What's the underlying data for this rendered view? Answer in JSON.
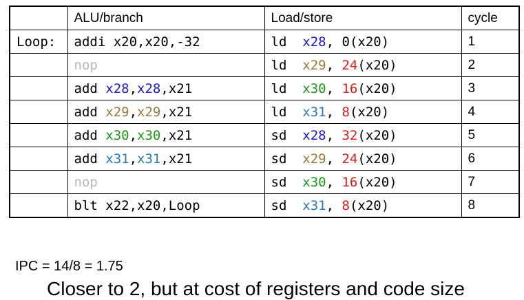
{
  "table": {
    "headers": {
      "label": "",
      "alu": "ALU/branch",
      "ls": "Load/store",
      "cycle": "cycle"
    },
    "rows": [
      {
        "label": "Loop:",
        "alu": [
          {
            "t": "addi x20,x20,-32",
            "c": ""
          }
        ],
        "ls": [
          {
            "t": "ld  ",
            "c": ""
          },
          {
            "t": "x28",
            "c": "blue"
          },
          {
            "t": ", ",
            "c": ""
          },
          {
            "t": "0",
            "c": ""
          },
          {
            "t": "(x20)",
            "c": ""
          }
        ],
        "cycle": "1"
      },
      {
        "label": "",
        "alu": [
          {
            "t": "nop",
            "c": "nop"
          }
        ],
        "ls": [
          {
            "t": "ld  ",
            "c": ""
          },
          {
            "t": "x29",
            "c": "gold"
          },
          {
            "t": ", ",
            "c": ""
          },
          {
            "t": "24",
            "c": "red"
          },
          {
            "t": "(x20)",
            "c": ""
          }
        ],
        "cycle": "2"
      },
      {
        "label": "",
        "alu": [
          {
            "t": "add ",
            "c": ""
          },
          {
            "t": "x28",
            "c": "blue"
          },
          {
            "t": ",",
            "c": ""
          },
          {
            "t": "x28",
            "c": "blue"
          },
          {
            "t": ",x21",
            "c": ""
          }
        ],
        "ls": [
          {
            "t": "ld  ",
            "c": ""
          },
          {
            "t": "x30",
            "c": "green"
          },
          {
            "t": ", ",
            "c": ""
          },
          {
            "t": "16",
            "c": "red"
          },
          {
            "t": "(x20)",
            "c": ""
          }
        ],
        "cycle": "3"
      },
      {
        "label": "",
        "alu": [
          {
            "t": "add ",
            "c": ""
          },
          {
            "t": "x29",
            "c": "gold"
          },
          {
            "t": ",",
            "c": ""
          },
          {
            "t": "x29",
            "c": "gold"
          },
          {
            "t": ",x21",
            "c": ""
          }
        ],
        "ls": [
          {
            "t": "ld  ",
            "c": ""
          },
          {
            "t": "x31",
            "c": "cyan"
          },
          {
            "t": ", ",
            "c": ""
          },
          {
            "t": "8",
            "c": "red"
          },
          {
            "t": "(x20)",
            "c": ""
          }
        ],
        "cycle": "4"
      },
      {
        "label": "",
        "alu": [
          {
            "t": "add ",
            "c": ""
          },
          {
            "t": "x30",
            "c": "green"
          },
          {
            "t": ",",
            "c": ""
          },
          {
            "t": "x30",
            "c": "green"
          },
          {
            "t": ",x21",
            "c": ""
          }
        ],
        "ls": [
          {
            "t": "sd  ",
            "c": ""
          },
          {
            "t": "x28",
            "c": "blue"
          },
          {
            "t": ", ",
            "c": ""
          },
          {
            "t": "32",
            "c": "red"
          },
          {
            "t": "(x20)",
            "c": ""
          }
        ],
        "cycle": "5"
      },
      {
        "label": "",
        "alu": [
          {
            "t": "add ",
            "c": ""
          },
          {
            "t": "x31",
            "c": "cyan"
          },
          {
            "t": ",",
            "c": ""
          },
          {
            "t": "x31",
            "c": "cyan"
          },
          {
            "t": ",x21",
            "c": ""
          }
        ],
        "ls": [
          {
            "t": "sd  ",
            "c": ""
          },
          {
            "t": "x29",
            "c": "gold"
          },
          {
            "t": ", ",
            "c": ""
          },
          {
            "t": "24",
            "c": "red"
          },
          {
            "t": "(x20)",
            "c": ""
          }
        ],
        "cycle": "6"
      },
      {
        "label": "",
        "alu": [
          {
            "t": "nop",
            "c": "nop"
          }
        ],
        "ls": [
          {
            "t": "sd  ",
            "c": ""
          },
          {
            "t": "x30",
            "c": "green"
          },
          {
            "t": ", ",
            "c": ""
          },
          {
            "t": "16",
            "c": "red"
          },
          {
            "t": "(x20)",
            "c": ""
          }
        ],
        "cycle": "7"
      },
      {
        "label": "",
        "alu": [
          {
            "t": "blt x22,x20,Loop",
            "c": ""
          }
        ],
        "ls": [
          {
            "t": "sd  ",
            "c": ""
          },
          {
            "t": "x31",
            "c": "cyan"
          },
          {
            "t": ", ",
            "c": ""
          },
          {
            "t": "8",
            "c": "red"
          },
          {
            "t": "(x20)",
            "c": ""
          }
        ],
        "cycle": "8"
      }
    ]
  },
  "colors": {
    "blue": "#1a1ad8",
    "gold": "#9a7a3a",
    "green": "#1a9a1a",
    "cyan": "#2a7ab8",
    "red": "#e01c1c",
    "nop": "#b8b8b8"
  },
  "ipc_line": "IPC = 14/8 = 1.75",
  "note_line": "Closer to 2, but at cost of registers and code size"
}
